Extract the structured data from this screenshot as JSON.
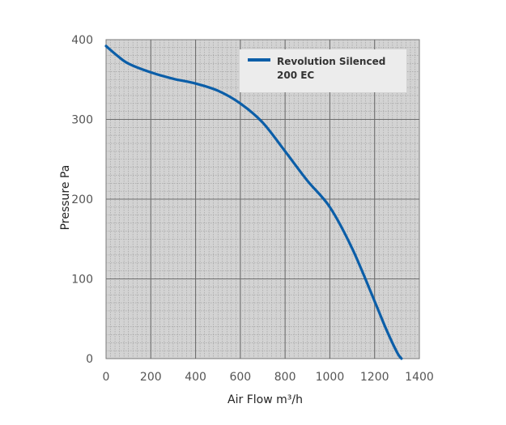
{
  "chart_data": {
    "type": "line",
    "title": "",
    "xlabel": "Air Flow m³/h",
    "ylabel": "Pressure Pa",
    "xlim": [
      0,
      1400
    ],
    "ylim": [
      0,
      400
    ],
    "x_ticks": [
      0,
      200,
      400,
      600,
      800,
      1000,
      1200,
      1400
    ],
    "y_ticks": [
      0,
      100,
      200,
      300,
      400
    ],
    "grid": true,
    "minor_grid": true,
    "legend_position": "top-right",
    "plot_background": "#d3d3d3",
    "series": [
      {
        "name": "Revolution Silenced 200 EC",
        "legend_lines": [
          "Revolution Silenced",
          "200 EC"
        ],
        "color": "#0b5ea8",
        "x": [
          0,
          50,
          100,
          200,
          300,
          400,
          500,
          600,
          700,
          800,
          900,
          1000,
          1100,
          1200,
          1250,
          1300,
          1320
        ],
        "y": [
          392,
          380,
          370,
          359,
          351,
          345,
          336,
          320,
          296,
          260,
          223,
          190,
          138,
          72,
          38,
          8,
          0
        ]
      }
    ]
  }
}
